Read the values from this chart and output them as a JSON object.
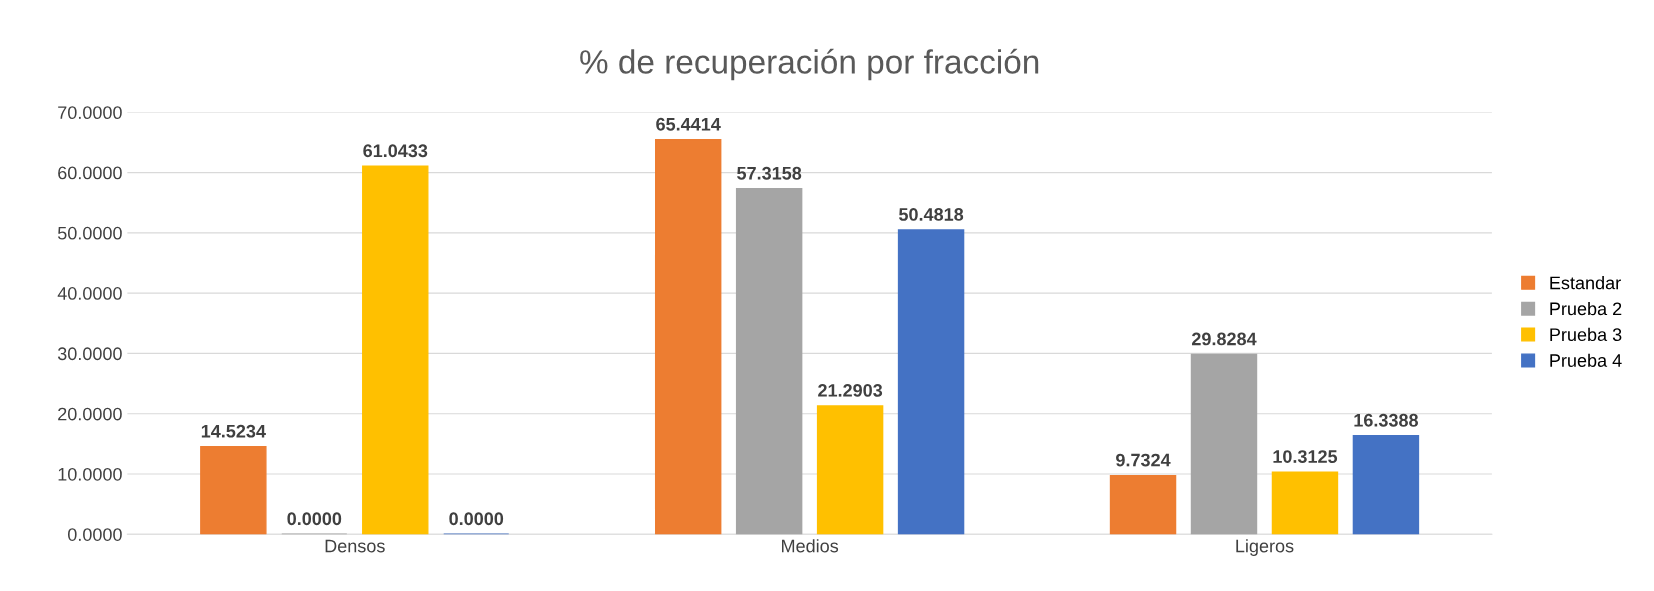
{
  "chart_data": {
    "type": "bar",
    "title": "% de recuperación por fracción",
    "categories": [
      "Densos",
      "Medios",
      "Ligeros"
    ],
    "series": [
      {
        "name": "Estandar",
        "color": "#ed7d31",
        "values": [
          14.5234,
          65.4414,
          9.7324
        ],
        "value_labels": [
          "14.5234",
          "65.4414",
          "9.7324"
        ]
      },
      {
        "name": "Prueba 2",
        "color": "#a5a5a5",
        "values": [
          0,
          57.3158,
          29.8284
        ],
        "value_labels": [
          "0.0000",
          "57.3158",
          "29.8284"
        ]
      },
      {
        "name": "Prueba 3",
        "color": "#ffc000",
        "values": [
          61.0433,
          21.2903,
          10.3125
        ],
        "value_labels": [
          "61.0433",
          "21.2903",
          "10.3125"
        ]
      },
      {
        "name": "Prueba 4",
        "color": "#4472c4",
        "values": [
          0,
          50.4818,
          16.3388
        ],
        "value_labels": [
          "0.0000",
          "50.4818",
          "16.3388"
        ]
      }
    ],
    "ylim": [
      0,
      70
    ],
    "yticks": [
      {
        "value": 0,
        "label": "0.0000"
      },
      {
        "value": 10,
        "label": "10.0000"
      },
      {
        "value": 20,
        "label": "20.0000"
      },
      {
        "value": 30,
        "label": "30.0000"
      },
      {
        "value": 40,
        "label": "40.0000"
      },
      {
        "value": 50,
        "label": "50.0000"
      },
      {
        "value": 60,
        "label": "60.0000"
      },
      {
        "value": 70,
        "label": "70.0000"
      }
    ],
    "grid": "y",
    "legend": "right"
  }
}
